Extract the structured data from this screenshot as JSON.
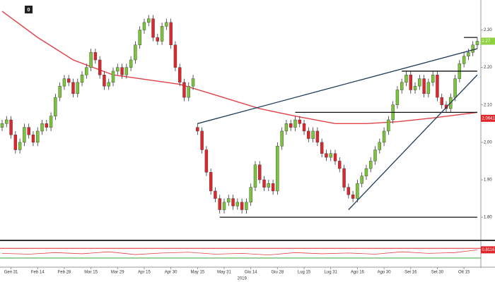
{
  "chart_data": {
    "type": "candlestick",
    "corner_label": "0",
    "categories": [
      null,
      null,
      "Gen 31",
      null,
      null,
      null,
      null,
      null,
      "Feb 14",
      null,
      null,
      null,
      null,
      null,
      "Feb 28",
      null,
      null,
      null,
      null,
      null,
      "Mar 15",
      null,
      null,
      null,
      null,
      null,
      "Mar 29",
      null,
      null,
      null,
      null,
      null,
      "Apr 15",
      null,
      null,
      null,
      null,
      null,
      "Apr 30",
      null,
      null,
      null,
      null,
      null,
      "May 15",
      null,
      null,
      null,
      null,
      null,
      "May 31",
      null,
      null,
      null,
      null,
      null,
      "Giu 14",
      null,
      null,
      null,
      null,
      null,
      "Giu 28",
      null,
      null,
      null,
      null,
      null,
      "Lug 15",
      null,
      null,
      null,
      null,
      null,
      "Lug 31",
      null,
      null,
      null,
      null,
      null,
      "Ago 16",
      null,
      null,
      null,
      null,
      null,
      "Ago 30",
      null,
      null,
      null,
      null,
      null,
      "Set 16",
      null,
      null,
      null,
      null,
      null,
      "Set 30",
      null,
      null,
      null,
      null,
      null,
      "Ott 15",
      null,
      null,
      null
    ],
    "year": "2019",
    "open": [
      2.04,
      2.05,
      2.06,
      2.02,
      1.98,
      2.0,
      2.04,
      2.02,
      2.0,
      2.03,
      2.05,
      2.04,
      2.07,
      2.12,
      2.15,
      2.17,
      2.16,
      2.13,
      2.16,
      2.18,
      2.2,
      2.24,
      2.22,
      2.18,
      2.15,
      2.16,
      2.19,
      2.2,
      2.18,
      2.2,
      2.22,
      2.26,
      2.3,
      2.32,
      2.33,
      2.28,
      2.27,
      2.31,
      2.32,
      2.26,
      2.2,
      2.16,
      2.12,
      2.15,
      2.04,
      2.03,
      1.98,
      1.92,
      1.87,
      1.85,
      1.82,
      1.84,
      1.85,
      1.83,
      1.84,
      1.82,
      1.84,
      1.88,
      1.94,
      1.9,
      1.88,
      1.89,
      1.87,
      1.99,
      2.03,
      2.05,
      2.04,
      2.06,
      2.05,
      2.03,
      2.01,
      2.03,
      2.0,
      1.97,
      1.96,
      1.97,
      1.95,
      1.93,
      1.88,
      1.86,
      1.85,
      1.89,
      1.91,
      1.93,
      1.95,
      1.98,
      2.0,
      2.03,
      2.06,
      2.1,
      2.14,
      2.16,
      2.18,
      2.14,
      2.15,
      2.17,
      2.13,
      2.16,
      2.18,
      2.12,
      2.1,
      2.09,
      2.12,
      2.17,
      2.21,
      2.23,
      2.24,
      2.26
    ],
    "high": [
      2.06,
      2.07,
      2.07,
      2.03,
      2.01,
      2.05,
      2.05,
      2.03,
      2.04,
      2.06,
      2.06,
      2.08,
      2.13,
      2.16,
      2.18,
      2.18,
      2.17,
      2.17,
      2.19,
      2.21,
      2.25,
      2.25,
      2.23,
      2.19,
      2.17,
      2.2,
      2.21,
      2.21,
      2.21,
      2.23,
      2.27,
      2.31,
      2.33,
      2.34,
      2.34,
      2.29,
      2.32,
      2.33,
      2.33,
      2.27,
      2.21,
      2.17,
      2.16,
      2.18,
      2.05,
      2.04,
      1.99,
      1.93,
      1.88,
      1.86,
      1.85,
      1.86,
      1.86,
      1.85,
      1.85,
      1.85,
      1.89,
      1.95,
      1.95,
      1.91,
      1.9,
      1.9,
      2.0,
      2.04,
      2.06,
      2.06,
      2.07,
      2.07,
      2.06,
      2.04,
      2.04,
      2.04,
      2.01,
      1.98,
      1.98,
      1.98,
      1.96,
      1.94,
      1.89,
      1.87,
      1.9,
      1.92,
      1.94,
      1.96,
      1.99,
      2.01,
      2.04,
      2.07,
      2.11,
      2.15,
      2.17,
      2.19,
      2.19,
      2.16,
      2.18,
      2.18,
      2.17,
      2.19,
      2.19,
      2.13,
      2.11,
      2.13,
      2.18,
      2.22,
      2.24,
      2.25,
      2.27,
      2.28
    ],
    "low": [
      2.03,
      2.04,
      2.01,
      1.97,
      1.97,
      1.99,
      2.01,
      1.99,
      1.99,
      2.02,
      2.03,
      2.03,
      2.06,
      2.11,
      2.14,
      2.15,
      2.12,
      2.12,
      2.15,
      2.17,
      2.19,
      2.21,
      2.17,
      2.14,
      2.14,
      2.15,
      2.18,
      2.17,
      2.17,
      2.19,
      2.21,
      2.25,
      2.29,
      2.31,
      2.27,
      2.26,
      2.26,
      2.3,
      2.25,
      2.19,
      2.15,
      2.11,
      2.11,
      2.14,
      2.02,
      1.97,
      1.91,
      1.86,
      1.84,
      1.81,
      1.81,
      1.83,
      1.82,
      1.82,
      1.81,
      1.81,
      1.83,
      1.87,
      1.89,
      1.87,
      1.87,
      1.86,
      1.86,
      1.98,
      2.02,
      2.03,
      2.03,
      2.04,
      2.02,
      2.0,
      2.0,
      1.99,
      1.96,
      1.95,
      1.95,
      1.94,
      1.92,
      1.87,
      1.85,
      1.84,
      1.84,
      1.88,
      1.9,
      1.92,
      1.94,
      1.97,
      1.99,
      2.02,
      2.05,
      2.09,
      2.13,
      2.15,
      2.13,
      2.13,
      2.14,
      2.12,
      2.12,
      2.15,
      2.11,
      2.09,
      2.08,
      2.08,
      2.11,
      2.16,
      2.2,
      2.22,
      2.23,
      2.25
    ],
    "close": [
      2.05,
      2.06,
      2.02,
      1.98,
      2.0,
      2.04,
      2.02,
      2.0,
      2.03,
      2.05,
      2.04,
      2.07,
      2.12,
      2.15,
      2.17,
      2.16,
      2.13,
      2.16,
      2.18,
      2.2,
      2.24,
      2.22,
      2.18,
      2.15,
      2.16,
      2.19,
      2.2,
      2.18,
      2.2,
      2.22,
      2.26,
      2.3,
      2.32,
      2.33,
      2.28,
      2.27,
      2.31,
      2.32,
      2.26,
      2.2,
      2.16,
      2.12,
      2.15,
      2.17,
      2.03,
      1.98,
      1.92,
      1.87,
      1.85,
      1.82,
      1.84,
      1.85,
      1.83,
      1.84,
      1.82,
      1.84,
      1.88,
      1.94,
      1.9,
      1.88,
      1.89,
      1.87,
      1.99,
      2.03,
      2.05,
      2.04,
      2.06,
      2.05,
      2.03,
      2.01,
      2.03,
      2.0,
      1.97,
      1.96,
      1.97,
      1.95,
      1.93,
      1.88,
      1.86,
      1.85,
      1.89,
      1.91,
      1.93,
      1.95,
      1.98,
      2.0,
      2.03,
      2.06,
      2.1,
      2.14,
      2.16,
      2.18,
      2.14,
      2.15,
      2.17,
      2.13,
      2.16,
      2.18,
      2.12,
      2.1,
      2.09,
      2.12,
      2.17,
      2.21,
      2.23,
      2.24,
      2.26,
      2.27
    ],
    "up_color": "#7cc43a",
    "down_color": "#e0262b",
    "ma": {
      "x": [
        0,
        8,
        16,
        25,
        40,
        47,
        58,
        66,
        75,
        82,
        89,
        97,
        107
      ],
      "values": [
        2.35,
        2.28,
        2.22,
        2.18,
        2.155,
        2.13,
        2.09,
        2.07,
        2.05,
        2.05,
        2.055,
        2.065,
        2.08
      ],
      "color": "#e0424a"
    },
    "lines": [
      {
        "x": [
          49,
          107
        ],
        "y": [
          1.8,
          1.8
        ],
        "color": "#111111"
      },
      {
        "x": [
          66,
          107
        ],
        "y": [
          2.08,
          2.08
        ],
        "color": "#111111"
      },
      {
        "x": [
          90,
          107
        ],
        "y": [
          2.19,
          2.19
        ],
        "color": "#111111"
      },
      {
        "x": [
          104,
          107
        ],
        "y": [
          2.28,
          2.28
        ],
        "color": "#111111"
      },
      {
        "x": [
          44,
          107
        ],
        "y": [
          2.05,
          2.25
        ],
        "color": "#1f3b5a"
      },
      {
        "x": [
          78,
          107
        ],
        "y": [
          1.82,
          2.18
        ],
        "color": "#1f3b5a"
      }
    ],
    "ylim": [
      1.74,
      2.38
    ],
    "yticks": [
      {
        "value": 1.8,
        "label": "1.80"
      },
      {
        "value": 1.9,
        "label": "1.90"
      },
      {
        "value": 2.0,
        "label": "2.00"
      },
      {
        "value": 2.1,
        "label": "2.10"
      },
      {
        "value": 2.2,
        "label": "2.20"
      },
      {
        "value": 2.3,
        "label": "2.30"
      }
    ],
    "price_tags": [
      {
        "value": 2.27,
        "color": "#8fd13f"
      },
      {
        "value": 2.0641,
        "label": "2.06410",
        "color": "#e0262b"
      }
    ],
    "indicator": {
      "x": [
        0,
        6,
        12,
        18,
        24,
        30,
        36,
        42,
        48,
        54,
        60,
        66,
        72,
        78,
        84,
        90,
        96,
        102,
        107
      ],
      "values": [
        0.72,
        0.7,
        0.74,
        0.71,
        0.76,
        0.69,
        0.73,
        0.75,
        0.7,
        0.72,
        0.68,
        0.74,
        0.71,
        0.73,
        0.7,
        0.76,
        0.72,
        0.74,
        0.8116
      ],
      "ylim": [
        0.4,
        1.0
      ],
      "color": "#e0424a",
      "levels": [
        {
          "value": 0.85,
          "color": "#e0262b"
        },
        {
          "value": 0.6,
          "color": "#3aa635"
        }
      ],
      "tag": 0.8116
    }
  }
}
